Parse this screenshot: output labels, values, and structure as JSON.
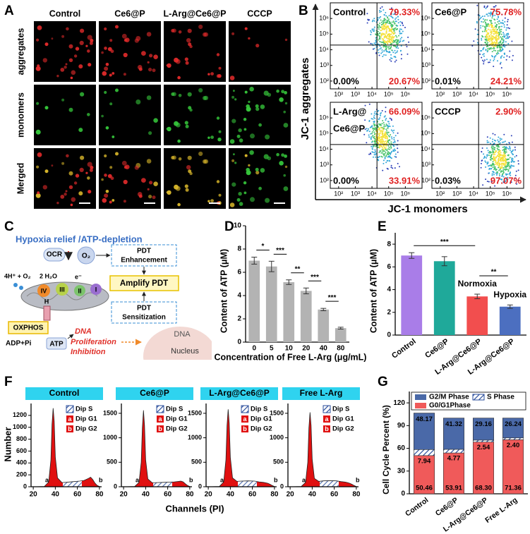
{
  "panel_labels": [
    "A",
    "B",
    "C",
    "D",
    "E",
    "F",
    "G"
  ],
  "microscopy": {
    "columns": [
      "Control",
      "Ce6@P",
      "L-Arg@Ce6@P",
      "CCCP"
    ],
    "rows": [
      "aggregates",
      "monomers",
      "Merged"
    ]
  },
  "flow": {
    "x_label": "JC-1 monomers",
    "y_label": "JC-1 aggregates",
    "lim": [
      1.5,
      7
    ],
    "gate": 4.3,
    "ticks": [
      {
        "value": 2,
        "label": "10²"
      },
      {
        "value": 3,
        "label": "10³"
      },
      {
        "value": 4,
        "label": "10⁴"
      },
      {
        "value": 5,
        "label": "10⁵"
      },
      {
        "value": 6,
        "label": "10⁶"
      }
    ],
    "plots": [
      {
        "name": [
          "Control"
        ],
        "upper_right": "79.33%",
        "lower_left": "0.00%",
        "lower_right": "20.67%"
      },
      {
        "name": [
          "Ce6@P"
        ],
        "upper_right": "75.78%",
        "lower_left": "0.01%",
        "lower_right": "24.21%"
      },
      {
        "name": [
          "L-Arg@",
          "Ce6@P"
        ],
        "upper_right": "66.09%",
        "lower_left": "0.00%",
        "lower_right": "33.91%"
      },
      {
        "name": [
          "CCCP"
        ],
        "upper_right": "2.90%",
        "lower_left": "0.03%",
        "lower_right": "97.07%"
      }
    ]
  },
  "diagram": {
    "title": "Hypoxia relief /ATP-depletion",
    "ocr": "OCR",
    "o2": "O₂",
    "pdt_enhancement": [
      "PDT",
      "Enhancement"
    ],
    "amplify": "Amplify PDT",
    "pdt_sensitization": [
      "PDT",
      "Sensitization"
    ],
    "reaction_left": "4H⁺ + O₂",
    "reaction_right": "2 H₂O",
    "electron": "e⁻",
    "complexes": [
      "IV",
      "III",
      "II",
      "I"
    ],
    "proton": "H",
    "oxphos": "OXPHOS",
    "adp": "ADP+Pi",
    "atp": "ATP",
    "dna_red": "DNA",
    "inhibition": [
      "Proliferation",
      "Inhibition"
    ],
    "nucleus_dna": "DNA",
    "nucleus": "Nucleus"
  },
  "panel_F": {
    "y_label": "Number",
    "x_label": "Channels (PI)",
    "legend": [
      "Dip S",
      "Dip G1",
      "Dip G2"
    ],
    "markers": [
      "a",
      "b"
    ]
  },
  "chart_data": [
    {
      "type": "bar",
      "y_label": "Content of ATP (μM)",
      "x_label": "Concentration of Free L-Arg (μg/mL)",
      "categories": [
        "0",
        "5",
        "10",
        "20",
        "40",
        "80"
      ],
      "values": [
        7.0,
        6.5,
        5.15,
        4.4,
        2.8,
        1.2
      ],
      "errors": [
        0.3,
        0.45,
        0.2,
        0.25,
        0.1,
        0.08
      ],
      "color": "#b3b3b3",
      "ylim": [
        0,
        10
      ],
      "yticks": [
        0,
        2,
        4,
        6,
        8,
        10
      ],
      "significance": [
        {
          "from": 0,
          "to": 1,
          "label": "*"
        },
        {
          "from": 1,
          "to": 2,
          "label": "***"
        },
        {
          "from": 2,
          "to": 3,
          "label": "**"
        },
        {
          "from": 3,
          "to": 4,
          "label": "***"
        },
        {
          "from": 4,
          "to": 5,
          "label": "***"
        }
      ]
    },
    {
      "type": "bar",
      "y_label": "Content of ATP (μM)",
      "categories": [
        "Control",
        "Ce6@P",
        "L-Arg@Ce6@P",
        "L-Arg@Ce6@P"
      ],
      "values": [
        7.0,
        6.5,
        3.4,
        2.5
      ],
      "errors": [
        0.25,
        0.4,
        0.2,
        0.15
      ],
      "colors": [
        "#a97de8",
        "#1fa99a",
        "#f24e4e",
        "#4c6fc0"
      ],
      "ylim": [
        0,
        9
      ],
      "yticks": [
        0,
        2,
        4,
        6,
        8
      ],
      "annotations": [
        {
          "category": 2,
          "text": "Normoxia"
        },
        {
          "category": 3,
          "text": "Hypoxia"
        }
      ],
      "significance": [
        {
          "from": 0,
          "to": 2,
          "label": "***"
        },
        {
          "from": 2,
          "to": 3,
          "label": "**"
        }
      ]
    },
    {
      "type": "area",
      "title": "Control",
      "x": [
        20,
        30,
        34,
        36,
        37,
        38,
        39,
        40,
        42,
        46,
        50,
        56,
        62,
        66,
        70,
        72,
        74,
        76,
        78,
        80
      ],
      "values": [
        0,
        5,
        80,
        450,
        1050,
        1320,
        1100,
        500,
        150,
        70,
        75,
        85,
        95,
        105,
        140,
        160,
        120,
        60,
        20,
        5
      ],
      "xlim": [
        18,
        82
      ],
      "xticks": [
        20,
        40,
        60,
        80
      ],
      "ylim": [
        0,
        1400
      ],
      "yticks": [
        0,
        200,
        400,
        600,
        800,
        1000,
        1200
      ]
    },
    {
      "type": "area",
      "title": "Ce6@P",
      "x": [
        20,
        30,
        34,
        36,
        37,
        38,
        39,
        40,
        42,
        46,
        50,
        56,
        62,
        66,
        70,
        72,
        74,
        76,
        78,
        80
      ],
      "values": [
        0,
        5,
        90,
        500,
        1200,
        1560,
        1250,
        550,
        160,
        80,
        85,
        90,
        95,
        100,
        110,
        115,
        100,
        60,
        25,
        5
      ],
      "xlim": [
        18,
        82
      ],
      "xticks": [
        20,
        40,
        60,
        80
      ],
      "ylim": [
        0,
        1700
      ],
      "yticks": [
        0,
        500,
        1000,
        1500
      ]
    },
    {
      "type": "area",
      "title": "L-Arg@Ce6@P",
      "x": [
        20,
        30,
        34,
        36,
        37,
        38,
        39,
        40,
        42,
        46,
        50,
        56,
        62,
        66,
        70,
        72,
        74,
        76,
        78,
        80
      ],
      "values": [
        0,
        5,
        100,
        550,
        1250,
        1580,
        1300,
        600,
        180,
        110,
        115,
        120,
        115,
        100,
        90,
        80,
        70,
        50,
        25,
        5
      ],
      "xlim": [
        18,
        82
      ],
      "xticks": [
        20,
        40,
        60,
        80
      ],
      "ylim": [
        0,
        1700
      ],
      "yticks": [
        0,
        500,
        1000,
        1500
      ]
    },
    {
      "type": "area",
      "title": "Free L-Arg",
      "x": [
        20,
        30,
        34,
        36,
        37,
        38,
        39,
        40,
        42,
        46,
        50,
        56,
        62,
        66,
        70,
        72,
        74,
        76,
        78,
        80
      ],
      "values": [
        0,
        5,
        90,
        500,
        1200,
        1520,
        1250,
        560,
        170,
        110,
        120,
        125,
        120,
        105,
        95,
        85,
        70,
        50,
        25,
        5
      ],
      "xlim": [
        18,
        82
      ],
      "xticks": [
        20,
        40,
        60,
        80
      ],
      "ylim": [
        0,
        1700
      ],
      "yticks": [
        0,
        500,
        1000,
        1500
      ]
    },
    {
      "type": "stacked_bar",
      "y_label": "Cell Cycle Percent (%)",
      "categories": [
        "Control",
        "Ce6@P",
        "L-Arg@Ce6@P",
        "Free L-Arg"
      ],
      "ylim": [
        0,
        135
      ],
      "yticks": [
        0,
        30,
        60,
        90,
        120
      ],
      "series": [
        {
          "name": "G0/G1Phase",
          "color": "#f05a5a",
          "values": [
            50.46,
            53.91,
            68.3,
            71.36
          ],
          "value_labels": [
            "50.46",
            "53.91",
            "68.30",
            "71.36"
          ]
        },
        {
          "name": "S Phase",
          "color": "#2a4d9b",
          "pattern": "hatch",
          "values": [
            7.94,
            4.77,
            2.54,
            2.4
          ],
          "value_labels": [
            "7.94",
            "4.77",
            "2.54",
            "2.40"
          ]
        },
        {
          "name": "G2/M Phase",
          "color": "#4a69a8",
          "values": [
            48.17,
            41.32,
            29.16,
            26.24
          ],
          "value_labels": [
            "48.17",
            "41.32",
            "29.16",
            "26.24"
          ]
        }
      ]
    }
  ]
}
